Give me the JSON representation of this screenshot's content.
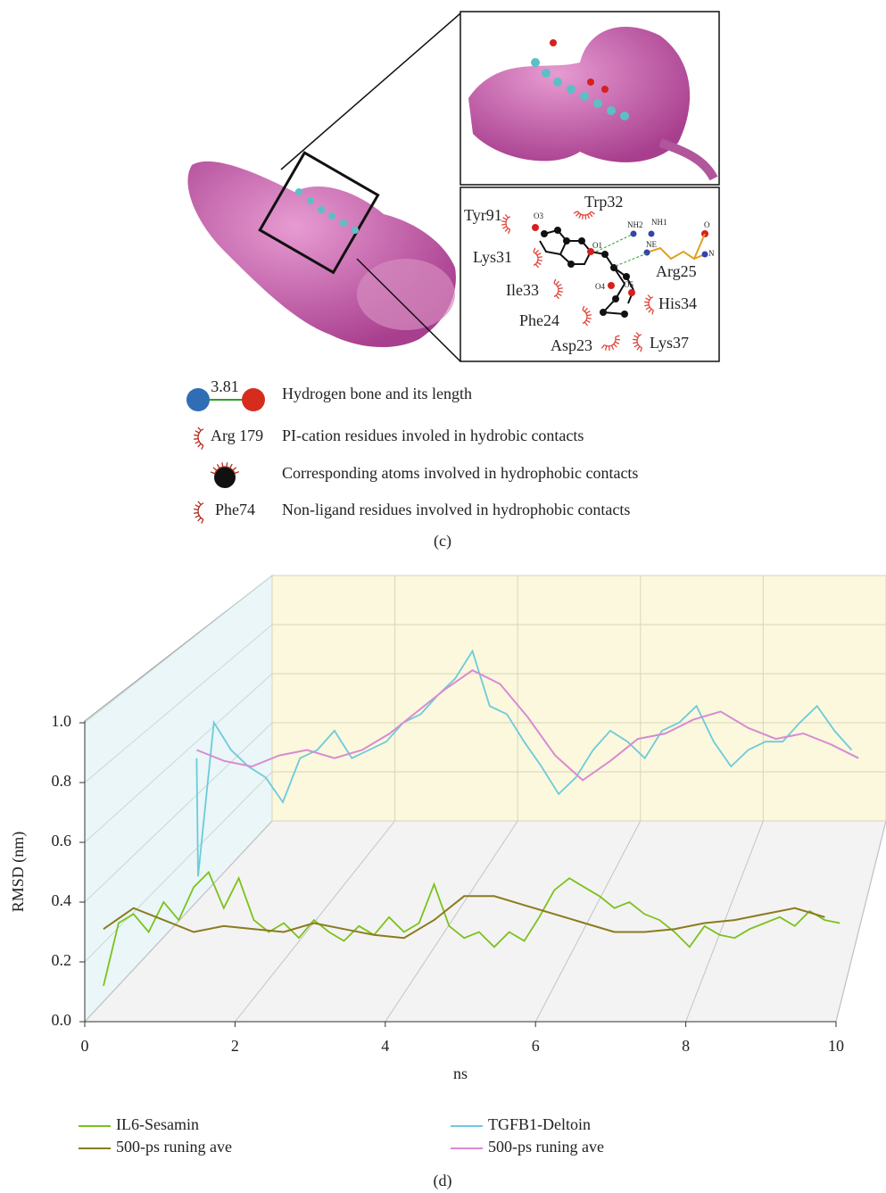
{
  "panel_c": {
    "label": "(c)",
    "residues": [
      "Tyr91",
      "Trp32",
      "Lys31",
      "Ile33",
      "Phe24",
      "Asp23",
      "Lys37",
      "His34",
      "Arg25"
    ],
    "atoms": [
      "O3",
      "O1",
      "O4",
      "O5",
      "NH2",
      "NH1",
      "NE",
      "O",
      "N"
    ],
    "legend": [
      {
        "sample": "3.81",
        "text": "Hydrogen bone and its length"
      },
      {
        "sample": "Arg 179",
        "text": "PI-cation residues involed in hydrobic contacts"
      },
      {
        "text": "Corresponding atoms involved in hydrophobic contacts"
      },
      {
        "sample": "Phe74",
        "text": "Non-ligand residues involved in hydrophobic contacts"
      }
    ]
  },
  "chart_data": {
    "type": "line",
    "label": "(d)",
    "ylabel": "RMSD (nm)",
    "xlabel": "ns",
    "xlim": [
      0,
      10
    ],
    "xticks": [
      0,
      2,
      4,
      6,
      8,
      10
    ],
    "ylim": [
      0,
      1
    ],
    "yticks": [
      {
        "value": 0,
        "label": "0.0"
      },
      0.2,
      0.4,
      0.6,
      0.8,
      {
        "value": 1,
        "label": "1.0"
      }
    ],
    "grid": true,
    "series": [
      {
        "name": "IL6-Sesamin",
        "color": "#7cc21c",
        "x": [
          0.25,
          0.45,
          0.65,
          0.85,
          1.05,
          1.25,
          1.45,
          1.65,
          1.85,
          2.05,
          2.25,
          2.45,
          2.65,
          2.85,
          3.05,
          3.25,
          3.45,
          3.65,
          3.85,
          4.05,
          4.25,
          4.45,
          4.65,
          4.85,
          5.05,
          5.25,
          5.45,
          5.65,
          5.85,
          6.05,
          6.25,
          6.45,
          6.65,
          6.85,
          7.05,
          7.25,
          7.45,
          7.65,
          7.85,
          8.05,
          8.25,
          8.45,
          8.65,
          8.85,
          9.05,
          9.25,
          9.45,
          9.65,
          9.85,
          10.05
        ],
        "values": [
          0.12,
          0.33,
          0.36,
          0.3,
          0.4,
          0.34,
          0.45,
          0.5,
          0.38,
          0.48,
          0.34,
          0.3,
          0.33,
          0.28,
          0.34,
          0.3,
          0.27,
          0.32,
          0.29,
          0.35,
          0.3,
          0.33,
          0.46,
          0.32,
          0.28,
          0.3,
          0.25,
          0.3,
          0.27,
          0.35,
          0.44,
          0.48,
          0.45,
          0.42,
          0.38,
          0.4,
          0.36,
          0.34,
          0.3,
          0.25,
          0.32,
          0.29,
          0.28,
          0.31,
          0.33,
          0.35,
          0.32,
          0.37,
          0.34,
          0.33
        ]
      },
      {
        "name": "500-ps runing ave",
        "color": "#8a7b1e",
        "x": [
          0.25,
          0.65,
          1.05,
          1.45,
          1.85,
          2.25,
          2.65,
          3.05,
          3.45,
          3.85,
          4.25,
          4.65,
          5.05,
          5.45,
          5.85,
          6.25,
          6.65,
          7.05,
          7.45,
          7.85,
          8.25,
          8.65,
          9.05,
          9.45,
          9.85
        ],
        "values": [
          0.31,
          0.38,
          0.34,
          0.3,
          0.32,
          0.31,
          0.3,
          0.33,
          0.31,
          0.29,
          0.28,
          0.34,
          0.42,
          0.42,
          0.39,
          0.36,
          0.33,
          0.3,
          0.3,
          0.31,
          0.33,
          0.34,
          0.36,
          0.38,
          0.35
        ]
      },
      {
        "name": "TGFB1-Deltoin",
        "color": "#6ccbdc",
        "x": [
          0.4,
          0.42,
          0.65,
          0.9,
          1.15,
          1.4,
          1.65,
          1.9,
          2.15,
          2.4,
          2.65,
          2.9,
          3.15,
          3.4,
          3.65,
          3.9,
          4.15,
          4.4,
          4.65,
          4.9,
          5.15,
          5.4,
          5.65,
          5.9,
          6.15,
          6.4,
          6.65,
          6.9,
          7.15,
          7.4,
          7.65,
          7.9,
          8.15,
          8.4,
          8.65,
          8.9,
          9.15,
          9.4,
          9.65,
          9.9
        ],
        "values": [
          0.63,
          0.2,
          0.76,
          0.66,
          0.6,
          0.56,
          0.47,
          0.63,
          0.66,
          0.73,
          0.63,
          0.66,
          0.69,
          0.76,
          0.79,
          0.86,
          0.92,
          1.02,
          0.82,
          0.79,
          0.69,
          0.6,
          0.5,
          0.56,
          0.66,
          0.73,
          0.69,
          0.63,
          0.73,
          0.76,
          0.82,
          0.69,
          0.6,
          0.66,
          0.69,
          0.69,
          0.76,
          0.82,
          0.73,
          0.66
        ]
      },
      {
        "name": "500-ps runing ave",
        "color": "#d98bd2",
        "x": [
          0.4,
          0.8,
          1.2,
          1.6,
          2.0,
          2.4,
          2.8,
          3.2,
          3.6,
          4.0,
          4.4,
          4.8,
          5.2,
          5.6,
          6.0,
          6.4,
          6.8,
          7.2,
          7.6,
          8.0,
          8.4,
          8.8,
          9.2,
          9.6,
          10.0
        ],
        "values": [
          0.66,
          0.62,
          0.6,
          0.64,
          0.66,
          0.63,
          0.66,
          0.72,
          0.8,
          0.88,
          0.95,
          0.9,
          0.78,
          0.64,
          0.55,
          0.62,
          0.7,
          0.72,
          0.77,
          0.8,
          0.74,
          0.7,
          0.72,
          0.68,
          0.63
        ]
      }
    ]
  }
}
